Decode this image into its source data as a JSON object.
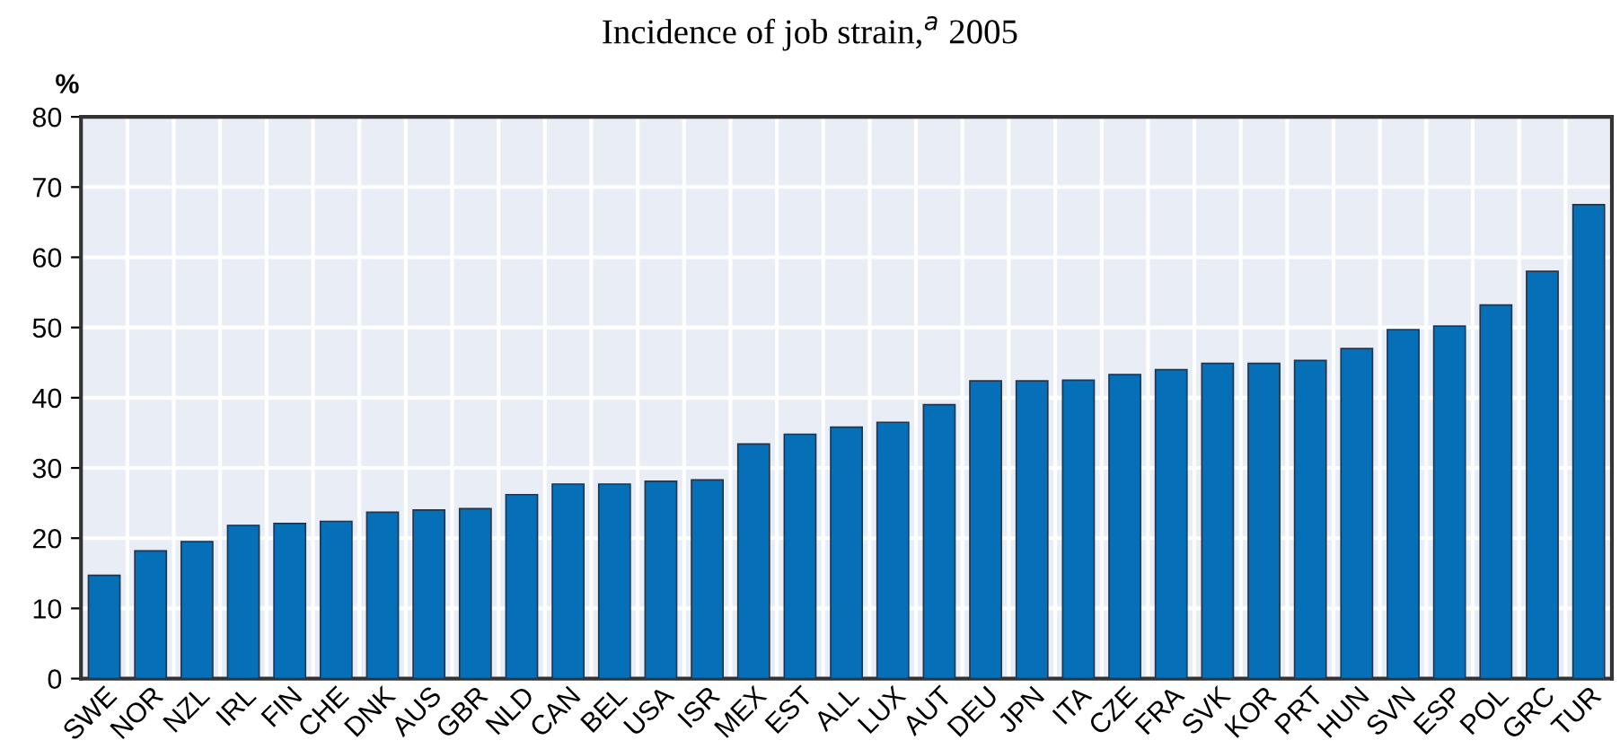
{
  "chart_data": {
    "type": "bar",
    "title": "Incidence of job strain,$^{a}$ 2005",
    "ylabel": "%",
    "categories": [
      "SWE",
      "NOR",
      "NZL",
      "IRL",
      "FIN",
      "CHE",
      "DNK",
      "AUS",
      "GBR",
      "NLD",
      "CAN",
      "BEL",
      "USA",
      "ISR",
      "MEX",
      "EST",
      "ALL",
      "LUX",
      "AUT",
      "DEU",
      "JPN",
      "ITA",
      "CZE",
      "FRA",
      "SVK",
      "KOR",
      "PRT",
      "HUN",
      "SVN",
      "ESP",
      "POL",
      "GRC",
      "TUR"
    ],
    "values": [
      14.7,
      18.2,
      19.5,
      21.8,
      22.1,
      22.4,
      23.7,
      24.0,
      24.2,
      26.2,
      27.7,
      27.7,
      28.1,
      28.3,
      33.4,
      34.8,
      35.8,
      36.5,
      39.0,
      42.4,
      42.4,
      42.5,
      43.3,
      44.0,
      44.9,
      44.9,
      45.3,
      47.0,
      49.7,
      50.2,
      53.2,
      58.0,
      67.5
    ],
    "color": "#0570b8",
    "ylim": [
      0,
      80
    ],
    "yticks": [
      0,
      10,
      20,
      30,
      40,
      50,
      60,
      70,
      80
    ],
    "grid": true
  }
}
